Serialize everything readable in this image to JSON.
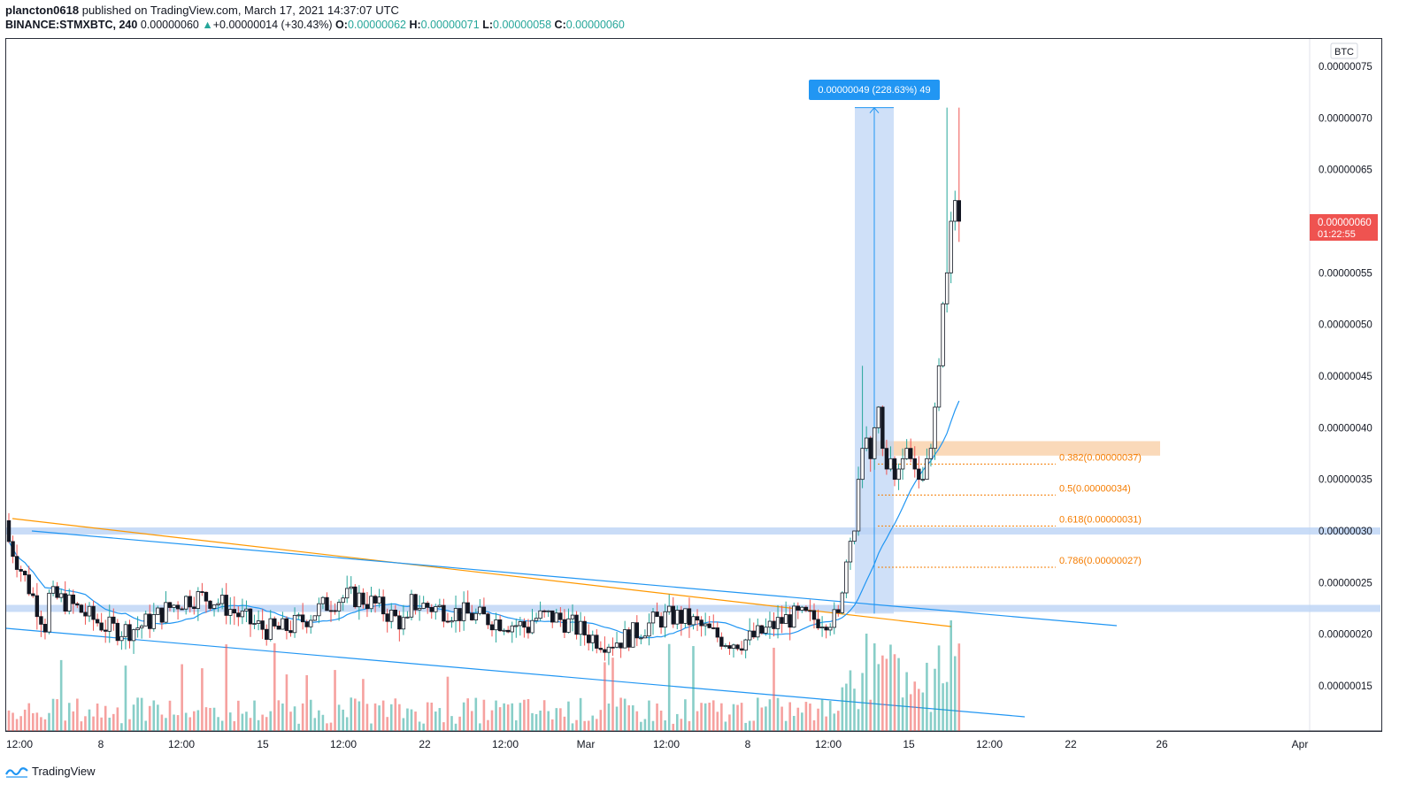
{
  "header": {
    "author": "plancton0618",
    "published_text": "published on TradingView.com, March 17, 2021 14:37:07 UTC",
    "symbol": "BINANCE:STMXBTC, 240",
    "last": "0.00000060",
    "change_arrow": "▲",
    "change": "+0.00000014 (+30.43%)",
    "o_label": "O:",
    "o_val": "0.00000062",
    "h_label": "H:",
    "h_val": "0.00000071",
    "l_label": "L:",
    "l_val": "0.00000058",
    "c_label": "C:",
    "c_val": "0.00000060"
  },
  "footer": {
    "brand": "TradingView",
    "brand_icon": "tradingview-logo-icon"
  },
  "colors": {
    "up": "#26a69a",
    "down": "#ef5350",
    "candle_body_up": "#ffffff",
    "candle_body_down": "#131722",
    "accent": "#2962ff",
    "measure": "#2196f3",
    "fib": "#f57c00",
    "ma": "#2196f3",
    "trendline_orange": "#ff9800"
  },
  "chart_data": {
    "type": "candlestick",
    "currency_label": "BTC",
    "y_ticks": [
      "0.00000075",
      "0.00000070",
      "0.00000065",
      "0.00000060",
      "0.00000055",
      "0.00000050",
      "0.00000045",
      "0.00000040",
      "0.00000035",
      "0.00000030",
      "0.00000025",
      "0.00000020",
      "0.00000015"
    ],
    "y_tick_values": [
      75,
      70,
      65,
      60,
      55,
      50,
      45,
      40,
      35,
      30,
      25,
      20,
      15
    ],
    "y_scale_note": "values in units of 1e-8 BTC",
    "ylim": [
      10,
      78
    ],
    "x_ticks": [
      "12:00",
      "8",
      "12:00",
      "15",
      "12:00",
      "22",
      "12:00",
      "Mar",
      "12:00",
      "8",
      "12:00",
      "15",
      "12:00",
      "22",
      "26",
      "Apr"
    ],
    "current_price_label": "0.00000060",
    "countdown": "01:22:55",
    "measure_label": "0.00000049 (228.63%) 49",
    "fib_levels": [
      {
        "label": "0.382(0.00000037)",
        "value": 37
      },
      {
        "label": "0.5(0.00000034)",
        "value": 34
      },
      {
        "label": "0.618(0.00000031)",
        "value": 31
      },
      {
        "label": "0.786(0.00000027)",
        "value": 27
      }
    ],
    "support_zones": [
      30,
      22.5
    ],
    "resistance_zone": [
      37.3,
      38.7
    ],
    "series_summary": {
      "early_feb_range": [
        17,
        31
      ],
      "mid_range": [
        17,
        27
      ],
      "breakout_start": 22,
      "breakout_high": 71,
      "last_close": 60
    }
  }
}
